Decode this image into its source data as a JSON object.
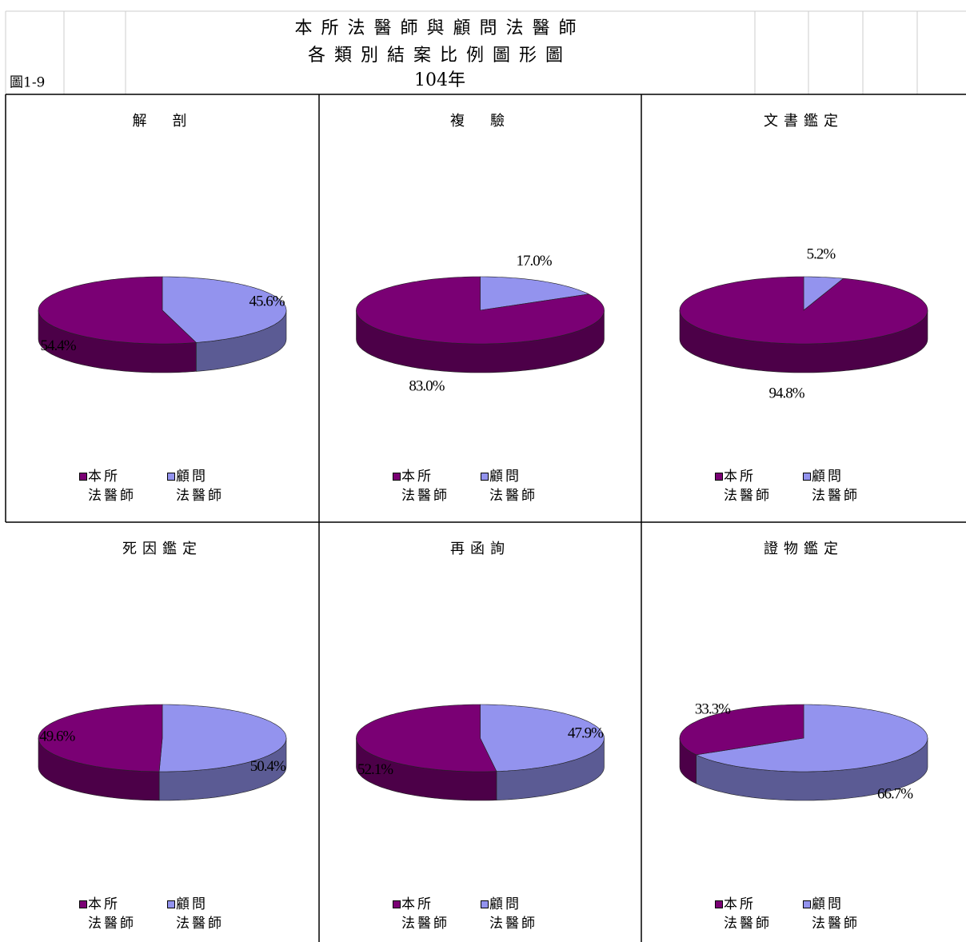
{
  "header": {
    "figure_label": "圖1-9",
    "title": [
      "本所法醫師與顧問法醫師",
      "各類別結案比例圖形圖"
    ],
    "year": "104年"
  },
  "chart_data": [
    {
      "type": "pie",
      "title": "解　剖",
      "categories": [
        "本所\n法醫師",
        "顧問\n法醫師"
      ],
      "values": [
        54.4,
        45.6
      ],
      "value_labels": [
        "54.4%",
        "45.6%"
      ],
      "colors": [
        "#7a0074",
        "#9393ee"
      ]
    },
    {
      "type": "pie",
      "title": "複　驗",
      "categories": [
        "本所\n法醫師",
        "顧問\n法醫師"
      ],
      "values": [
        83.0,
        17.0
      ],
      "value_labels": [
        "83.0%",
        "17.0%"
      ],
      "colors": [
        "#7a0074",
        "#9393ee"
      ]
    },
    {
      "type": "pie",
      "title": "文書鑑定",
      "categories": [
        "本所\n法醫師",
        "顧問\n法醫師"
      ],
      "values": [
        94.8,
        5.2
      ],
      "value_labels": [
        "94.8%",
        "5.2%"
      ],
      "colors": [
        "#7a0074",
        "#9393ee"
      ]
    },
    {
      "type": "pie",
      "title": "死因鑑定",
      "categories": [
        "本所\n法醫師",
        "顧問\n法醫師"
      ],
      "values": [
        49.6,
        50.4
      ],
      "value_labels": [
        "49.6%",
        "50.4%"
      ],
      "colors": [
        "#7a0074",
        "#9393ee"
      ]
    },
    {
      "type": "pie",
      "title": "再函詢",
      "categories": [
        "本所\n法醫師",
        "顧問\n法醫師"
      ],
      "values": [
        52.1,
        47.9
      ],
      "value_labels": [
        "52.1%",
        "47.9%"
      ],
      "colors": [
        "#7a0074",
        "#9393ee"
      ]
    },
    {
      "type": "pie",
      "title": "證物鑑定",
      "categories": [
        "本所\n法醫師",
        "顧問\n法醫師"
      ],
      "values": [
        33.3,
        66.7
      ],
      "value_labels": [
        "33.3%",
        "66.7%"
      ],
      "colors": [
        "#7a0074",
        "#9393ee"
      ]
    }
  ]
}
